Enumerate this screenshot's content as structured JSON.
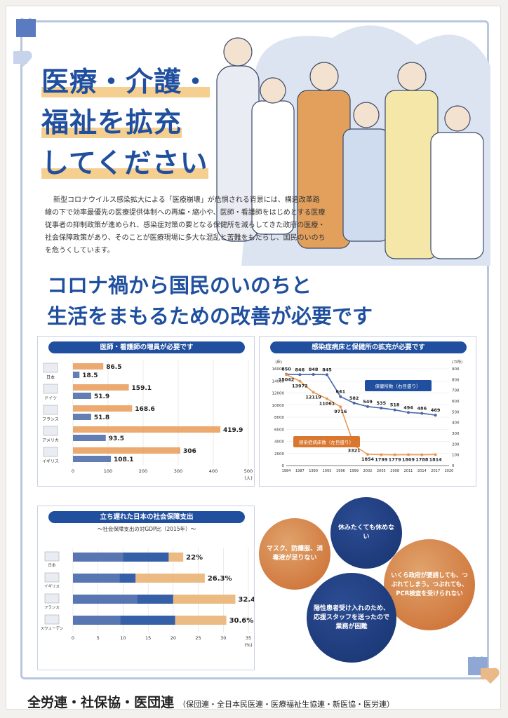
{
  "title_lines": [
    "医療・介護・",
    "福祉を拡充",
    "してください"
  ],
  "intro": "新型コロナウイルス感染拡大による「医療崩壊」が危惧される背景には、構造改革路線の下で効率最優先の医療提供体制への再編・縮小や、医師・看護師をはじめとする医療従事者の抑制政策が進められ、感染症対策の要となる保健所を減らしてきた政府の医療・社会保障政策があり、そのことが医療現場に多大な混乱と苦難をもたらし、国民のいのちを危うくしています。",
  "headline": {
    "line1": "コロナ禍から国民のいのちと",
    "line2": "生活をまもるための改善が必要です"
  },
  "chart1": {
    "title": "医師・看護師の増員が必要です"
  },
  "chart2": {
    "title": "感染症病床と保健所の拡充が必要です",
    "label_a": "保健所数（右目盛り）",
    "label_b": "感染症病床数（左目盛り）"
  },
  "chart3": {
    "title": "立ち遅れた日本の社会保障支出",
    "subtitle": "～社会保障支出の対GDP比（2015年）～"
  },
  "bubbles": [
    "休みたくても休めない",
    "マスク、防護服、消毒液が足りない",
    "いくら政府が要請しても、つぶれてしまう。つぶれても、PCR検査を受けられない",
    "陽性患者受け入れのため、応援スタッフを送ったので業務が困難",
    ""
  ],
  "footer": {
    "main": "全労連・社保協・医団連",
    "sub": "（保団連・全日本民医連・医療福祉生協連・新医協・医労連）"
  },
  "colors": {
    "navy": "#1f4f9e",
    "orange": "#e6a160",
    "lightblue": "#b9c6de",
    "dot_orange": "#e99a57",
    "dot_blue": "#4667a8"
  },
  "chart_data": [
    {
      "type": "bar",
      "title": "医師・看護師の増員が必要です",
      "orientation": "horizontal",
      "categories": [
        "日本",
        "ドイツ",
        "フランス",
        "アメリカ",
        "イギリス"
      ],
      "series": [
        {
          "name": "",
          "values": [
            86.5,
            159.1,
            168.6,
            419.9,
            306.0
          ]
        },
        {
          "name": "",
          "values": [
            18.5,
            51.9,
            51.8,
            93.5,
            108.1
          ]
        }
      ],
      "xlim": [
        0,
        500
      ],
      "xticks": [
        "0",
        "100",
        "200",
        "300",
        "400",
        "500"
      ],
      "xlabel": "(人)"
    },
    {
      "type": "line",
      "title": "感染症病床と保健所の拡充が必要です",
      "x": [
        "1984",
        "1987",
        "1990",
        "1993",
        "1996",
        "1999",
        "2002",
        "2005",
        "2008",
        "2011",
        "2014",
        "2017",
        "2020"
      ],
      "series": [
        {
          "name": "保健所数（右目盛り）",
          "axis": "right",
          "points": [
            [
              "1984",
              850
            ],
            [
              "1987",
              846
            ],
            [
              "1990",
              848
            ],
            [
              "1993",
              845
            ],
            [
              "1996",
              641
            ],
            [
              "1999",
              582
            ],
            [
              "2002",
              549
            ],
            [
              "2005",
              535
            ],
            [
              "2008",
              518
            ],
            [
              "2011",
              494
            ],
            [
              "2014",
              486
            ],
            [
              "2017",
              469
            ]
          ]
        },
        {
          "name": "感染症病床数（左目盛り）",
          "axis": "left",
          "points": [
            [
              "1984",
              15042
            ],
            [
              "1987",
              13972
            ],
            [
              "1990",
              12119
            ],
            [
              "1993",
              11061
            ],
            [
              "1996",
              9716
            ],
            [
              "1999",
              3321
            ],
            [
              "2002",
              1854
            ],
            [
              "2005",
              1799
            ],
            [
              "2008",
              1779
            ],
            [
              "2011",
              1809
            ],
            [
              "2014",
              1788
            ],
            [
              "2017",
              1814
            ]
          ]
        }
      ],
      "ylim_left": [
        0,
        16000
      ],
      "yticks_left": [
        "0",
        "2000",
        "4000",
        "6000",
        "8000",
        "10000",
        "12000",
        "14000",
        "16000"
      ],
      "ylim_right": [
        0,
        900
      ],
      "yticks_right": [
        "0",
        "100",
        "200",
        "300",
        "400",
        "500",
        "600",
        "700",
        "800",
        "900"
      ],
      "ylabel_left": "(床)",
      "ylabel_right": "(カ所)"
    },
    {
      "type": "bar",
      "title": "立ち遅れた日本の社会保障支出",
      "subtitle": "～社会保障支出の対GDP比（2015年）～",
      "orientation": "horizontal",
      "stacked": true,
      "categories": [
        "日本",
        "イギリス",
        "フランス",
        "スウェーデン"
      ],
      "series": [
        {
          "name": "",
          "values": [
            10.0,
            9.3,
            12.8,
            9.4
          ]
        },
        {
          "name": "",
          "values": [
            9.1,
            3.2,
            7.2,
            11.0
          ]
        },
        {
          "name": "",
          "values": [
            2.9,
            13.8,
            12.4,
            10.2
          ]
        }
      ],
      "totals": [
        "22%",
        "26.3%",
        "32.4%",
        "30.6%"
      ],
      "xlim": [
        0,
        35
      ],
      "xticks": [
        "0",
        "5",
        "10",
        "15",
        "20",
        "25",
        "30",
        "35"
      ],
      "xlabel": "(%)"
    }
  ]
}
